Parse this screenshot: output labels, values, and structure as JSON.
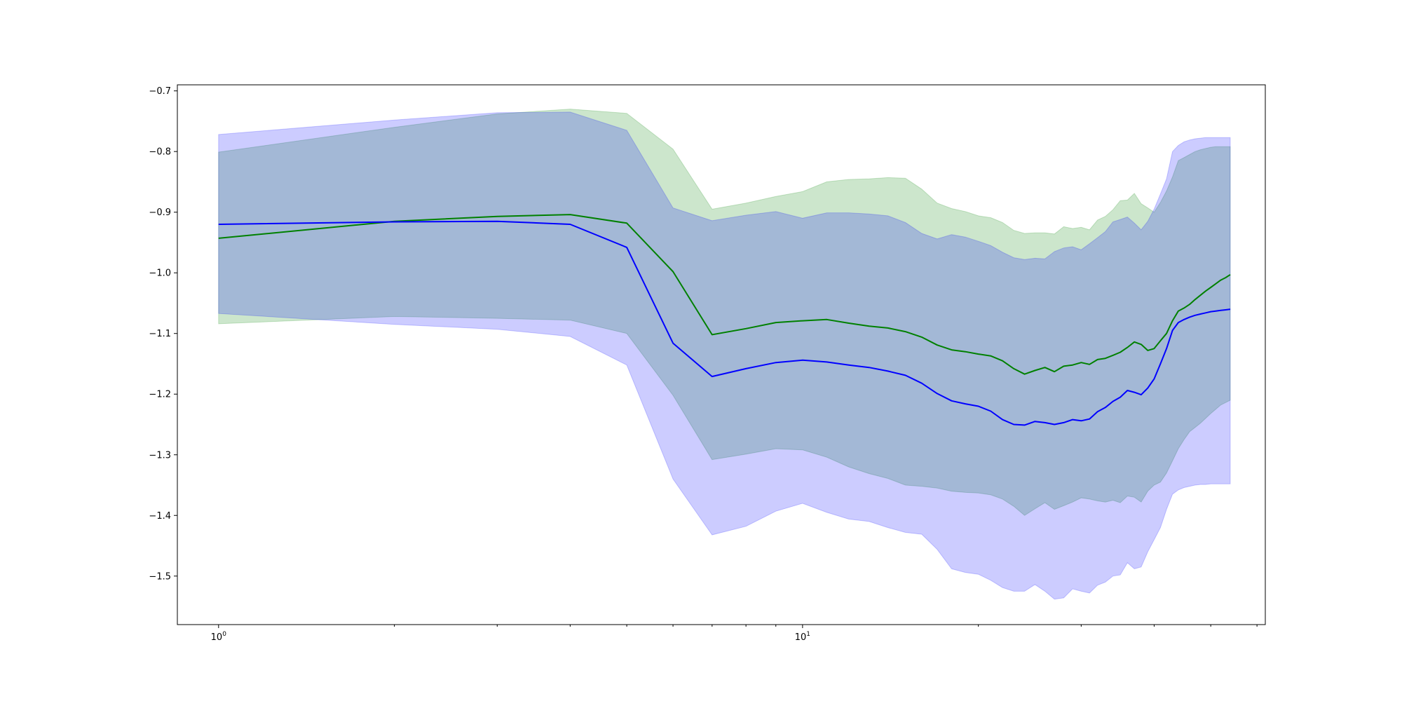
{
  "chart_data": {
    "type": "line",
    "title": "",
    "xlabel": "",
    "ylabel": "",
    "xscale": "log",
    "xlim": [
      0.85,
      62
    ],
    "ylim": [
      -1.58,
      -0.69
    ],
    "grid": false,
    "x_major_ticks": [
      {
        "value": 1,
        "base": "10",
        "exp": "0"
      },
      {
        "value": 10,
        "base": "10",
        "exp": "1"
      }
    ],
    "x_minor_ticks": [
      2,
      3,
      4,
      5,
      6,
      7,
      8,
      9,
      20,
      30,
      40,
      50,
      60
    ],
    "y_ticks": [
      {
        "value": -0.7,
        "label": "−0.7"
      },
      {
        "value": -0.8,
        "label": "−0.8"
      },
      {
        "value": -0.9,
        "label": "−0.9"
      },
      {
        "value": -1.0,
        "label": "−1.0"
      },
      {
        "value": -1.1,
        "label": "−1.1"
      },
      {
        "value": -1.2,
        "label": "−1.2"
      },
      {
        "value": -1.3,
        "label": "−1.3"
      },
      {
        "value": -1.4,
        "label": "−1.4"
      },
      {
        "value": -1.5,
        "label": "−1.5"
      }
    ],
    "x": [
      1,
      2,
      3,
      4,
      5,
      6,
      7,
      8,
      9,
      10,
      11,
      12,
      13,
      14,
      15,
      16,
      17,
      18,
      19,
      20,
      21,
      22,
      23,
      24,
      25,
      26,
      27,
      28,
      29,
      30,
      31,
      32,
      33,
      34,
      35,
      36,
      37,
      38,
      39,
      40,
      41,
      42,
      43,
      44,
      45,
      46,
      47,
      48,
      49,
      50,
      51,
      52,
      53,
      54
    ],
    "series": [
      {
        "color": "#008000",
        "fill": "#008000",
        "fill_alpha": 0.2,
        "mean": [
          -0.943,
          -0.915,
          -0.907,
          -0.904,
          -0.918,
          -0.998,
          -1.102,
          -1.092,
          -1.082,
          -1.079,
          -1.077,
          -1.083,
          -1.088,
          -1.091,
          -1.097,
          -1.106,
          -1.119,
          -1.127,
          -1.13,
          -1.134,
          -1.137,
          -1.145,
          -1.158,
          -1.167,
          -1.161,
          -1.156,
          -1.163,
          -1.154,
          -1.152,
          -1.148,
          -1.151,
          -1.143,
          -1.141,
          -1.136,
          -1.131,
          -1.123,
          -1.114,
          -1.118,
          -1.128,
          -1.125,
          -1.112,
          -1.1,
          -1.079,
          -1.063,
          -1.058,
          -1.052,
          -1.044,
          -1.037,
          -1.03,
          -1.024,
          -1.018,
          -1.012,
          -1.008,
          -1.003
        ],
        "upper": [
          -0.801,
          -0.76,
          -0.738,
          -0.73,
          -0.737,
          -0.796,
          -0.895,
          -0.885,
          -0.874,
          -0.866,
          -0.85,
          -0.846,
          -0.845,
          -0.843,
          -0.844,
          -0.862,
          -0.885,
          -0.894,
          -0.899,
          -0.906,
          -0.909,
          -0.917,
          -0.93,
          -0.935,
          -0.934,
          -0.934,
          -0.936,
          -0.924,
          -0.927,
          -0.925,
          -0.929,
          -0.913,
          -0.907,
          -0.896,
          -0.881,
          -0.88,
          -0.869,
          -0.886,
          -0.893,
          -0.9,
          -0.884,
          -0.865,
          -0.842,
          -0.815,
          -0.81,
          -0.805,
          -0.8,
          -0.797,
          -0.795,
          -0.793,
          -0.792,
          -0.792,
          -0.792,
          -0.792
        ],
        "lower": [
          -1.084,
          -1.072,
          -1.075,
          -1.078,
          -1.1,
          -1.202,
          -1.308,
          -1.299,
          -1.29,
          -1.292,
          -1.304,
          -1.32,
          -1.331,
          -1.339,
          -1.35,
          -1.352,
          -1.355,
          -1.36,
          -1.362,
          -1.363,
          -1.366,
          -1.373,
          -1.385,
          -1.4,
          -1.389,
          -1.379,
          -1.39,
          -1.384,
          -1.378,
          -1.371,
          -1.373,
          -1.376,
          -1.378,
          -1.375,
          -1.379,
          -1.368,
          -1.37,
          -1.378,
          -1.36,
          -1.35,
          -1.345,
          -1.33,
          -1.31,
          -1.29,
          -1.275,
          -1.262,
          -1.255,
          -1.248,
          -1.24,
          -1.232,
          -1.225,
          -1.218,
          -1.214,
          -1.21
        ]
      },
      {
        "color": "#0000ff",
        "fill": "#0000ff",
        "fill_alpha": 0.2,
        "mean": [
          -0.92,
          -0.916,
          -0.915,
          -0.92,
          -0.958,
          -1.116,
          -1.171,
          -1.158,
          -1.148,
          -1.144,
          -1.147,
          -1.152,
          -1.156,
          -1.162,
          -1.169,
          -1.182,
          -1.199,
          -1.211,
          -1.216,
          -1.22,
          -1.228,
          -1.242,
          -1.25,
          -1.251,
          -1.245,
          -1.247,
          -1.25,
          -1.247,
          -1.242,
          -1.244,
          -1.241,
          -1.229,
          -1.222,
          -1.212,
          -1.205,
          -1.194,
          -1.197,
          -1.201,
          -1.19,
          -1.175,
          -1.15,
          -1.125,
          -1.095,
          -1.082,
          -1.077,
          -1.073,
          -1.07,
          -1.068,
          -1.066,
          -1.064,
          -1.063,
          -1.062,
          -1.061,
          -1.06
        ],
        "upper": [
          -0.772,
          -0.748,
          -0.736,
          -0.735,
          -0.765,
          -0.893,
          -0.914,
          -0.905,
          -0.899,
          -0.91,
          -0.901,
          -0.901,
          -0.903,
          -0.906,
          -0.917,
          -0.935,
          -0.944,
          -0.937,
          -0.941,
          -0.948,
          -0.955,
          -0.966,
          -0.975,
          -0.978,
          -0.976,
          -0.977,
          -0.965,
          -0.959,
          -0.957,
          -0.962,
          -0.952,
          -0.942,
          -0.932,
          -0.916,
          -0.912,
          -0.908,
          -0.918,
          -0.929,
          -0.915,
          -0.895,
          -0.87,
          -0.845,
          -0.8,
          -0.79,
          -0.784,
          -0.781,
          -0.779,
          -0.778,
          -0.777,
          -0.777,
          -0.777,
          -0.777,
          -0.777,
          -0.777
        ],
        "lower": [
          -1.067,
          -1.085,
          -1.093,
          -1.105,
          -1.152,
          -1.34,
          -1.432,
          -1.418,
          -1.393,
          -1.38,
          -1.395,
          -1.406,
          -1.41,
          -1.42,
          -1.428,
          -1.431,
          -1.456,
          -1.488,
          -1.494,
          -1.497,
          -1.507,
          -1.519,
          -1.525,
          -1.525,
          -1.514,
          -1.525,
          -1.538,
          -1.536,
          -1.521,
          -1.525,
          -1.528,
          -1.515,
          -1.51,
          -1.5,
          -1.498,
          -1.478,
          -1.488,
          -1.485,
          -1.46,
          -1.44,
          -1.42,
          -1.39,
          -1.365,
          -1.358,
          -1.354,
          -1.352,
          -1.35,
          -1.349,
          -1.349,
          -1.348,
          -1.348,
          -1.348,
          -1.348,
          -1.348
        ]
      }
    ]
  }
}
